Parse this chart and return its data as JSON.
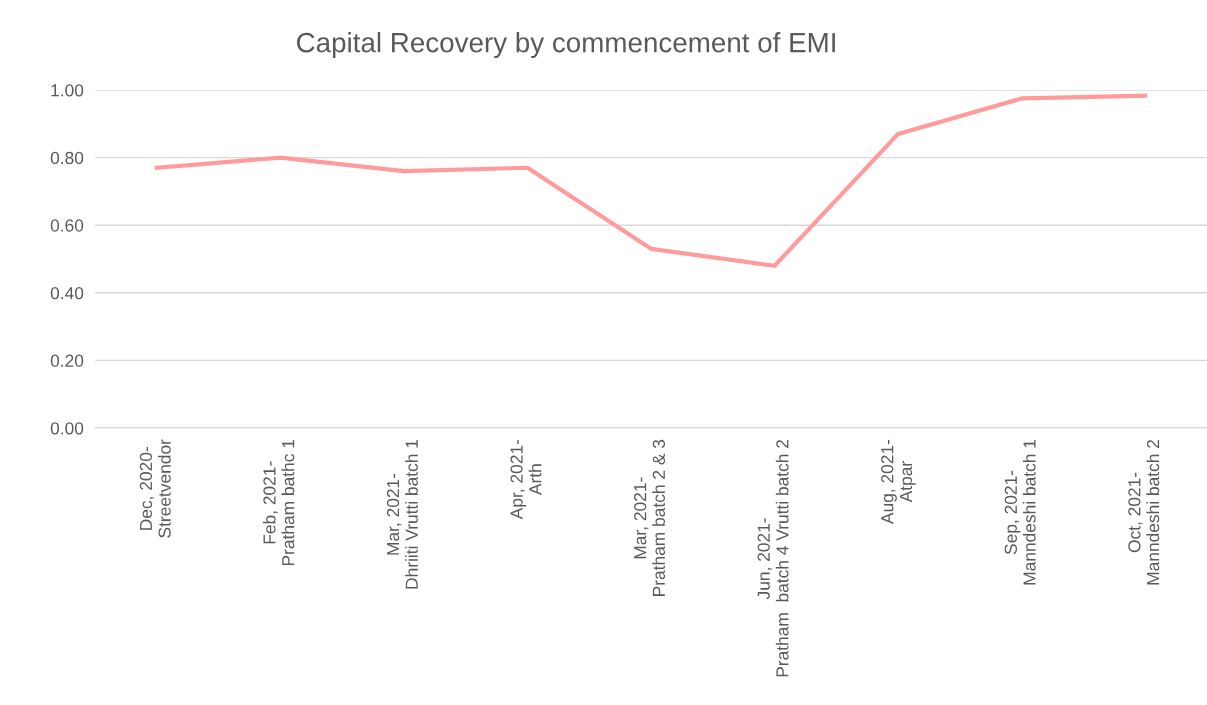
{
  "chart_data": {
    "type": "line",
    "title": "Capital Recovery by commencement of EMI",
    "categories": [
      "Dec, 2020-\nStreetvendor",
      "Feb, 2021-\nPratham bathc 1",
      "Mar, 2021-\nDhriiti Vrutti batch 1",
      "Apr, 2021-\nArth",
      "Mar, 2021-\nPratham batch 2 & 3",
      "Jun, 2021-\nPratham  batch 4 Vrutti batch 2",
      "Aug, 2021-\nAtpar",
      "Sep, 2021-\nManndeshi batch 1",
      "Oct, 2021-\nManndeshi batch 2"
    ],
    "series": [
      {
        "color": "#ff9b9b",
        "values": [
          0.77,
          0.8,
          0.76,
          0.77,
          0.53,
          0.48,
          0.87,
          0.975,
          0.983
        ]
      }
    ],
    "ylim": [
      0,
      1.0
    ],
    "yticks": [
      {
        "value": 0,
        "label": "0.00"
      },
      {
        "value": 0.2,
        "label": "0.20"
      },
      {
        "value": 0.4,
        "label": "0.40"
      },
      {
        "value": 0.6,
        "label": "0.60"
      },
      {
        "value": 0.8,
        "label": "0.80"
      },
      {
        "value": 1.0,
        "label": "1.00"
      }
    ],
    "grid": "y",
    "marker": "none",
    "line_style": "solid"
  }
}
